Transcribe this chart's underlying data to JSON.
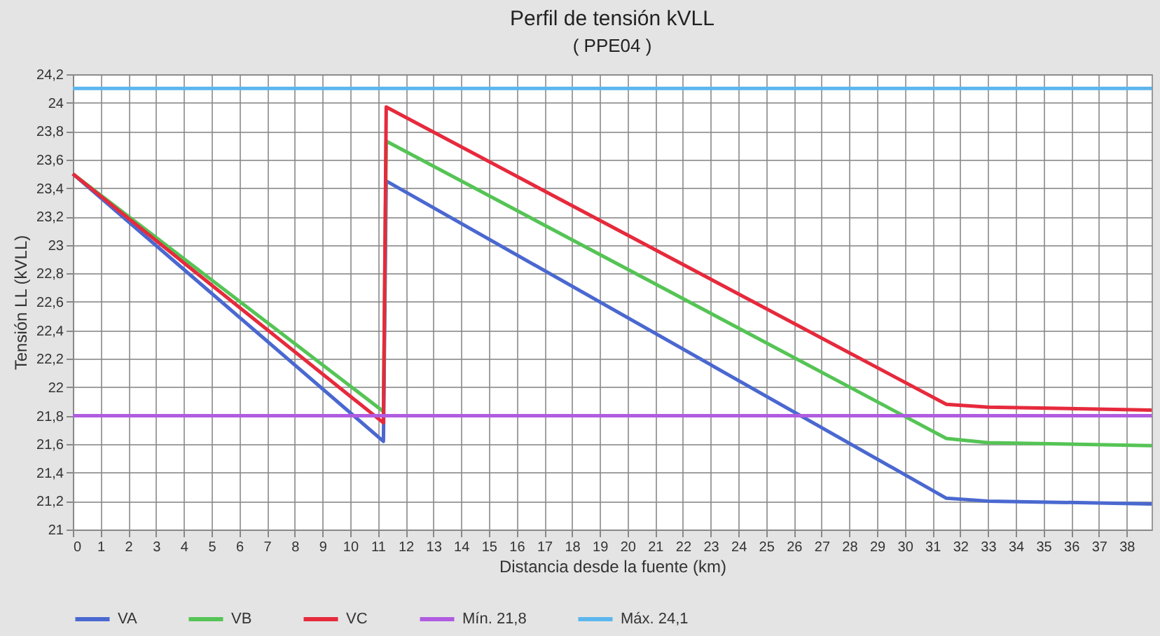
{
  "chart_data": {
    "type": "line",
    "title": "Perfil de tensión kVLL",
    "subtitle": "( PPE04 )",
    "xlabel": "Distancia desde la fuente (km)",
    "ylabel": "Tensión LL (kVLL)",
    "xlim": [
      0,
      38.9
    ],
    "xticks": [
      0,
      1,
      2,
      3,
      4,
      5,
      6,
      7,
      8,
      9,
      10,
      11,
      12,
      13,
      14,
      15,
      16,
      17,
      18,
      19,
      20,
      21,
      22,
      23,
      24,
      25,
      26,
      27,
      28,
      29,
      30,
      31,
      32,
      33,
      34,
      35,
      36,
      37,
      38
    ],
    "ylim": [
      21,
      24.2
    ],
    "yticks": [
      21,
      {
        "value": 21.2,
        "label": "21,2"
      },
      {
        "value": 21.4,
        "label": "21,4"
      },
      {
        "value": 21.6,
        "label": "21,6"
      },
      {
        "value": 21.8,
        "label": "21,8"
      },
      22,
      {
        "value": 22.2,
        "label": "22,2"
      },
      {
        "value": 22.4,
        "label": "22,4"
      },
      {
        "value": 22.6,
        "label": "22,6"
      },
      {
        "value": 22.8,
        "label": "22,8"
      },
      23,
      {
        "value": 23.2,
        "label": "23,2"
      },
      {
        "value": 23.4,
        "label": "23,4"
      },
      {
        "value": 23.6,
        "label": "23,6"
      },
      {
        "value": 23.8,
        "label": "23,8"
      },
      24,
      {
        "value": 24.2,
        "label": "24,2"
      }
    ],
    "grid": true,
    "legend": "bottom",
    "line_style": "solid",
    "marker": "none",
    "series": [
      {
        "name": "VA",
        "color": "#4a68d0",
        "x": [
          0,
          11.2,
          11.3,
          31.5,
          33,
          38.9
        ],
        "values": [
          23.5,
          21.62,
          23.45,
          21.22,
          21.2,
          21.18
        ]
      },
      {
        "name": "VB",
        "color": "#55c455",
        "x": [
          0,
          11.2,
          11.3,
          31.5,
          33,
          38.9
        ],
        "values": [
          23.5,
          21.83,
          23.73,
          21.64,
          21.61,
          21.59
        ]
      },
      {
        "name": "VC",
        "color": "#e62a3c",
        "x": [
          0,
          11.2,
          11.3,
          31.5,
          33,
          38.9
        ],
        "values": [
          23.5,
          21.75,
          23.97,
          21.88,
          21.86,
          21.84
        ]
      },
      {
        "name": "Mín. 21,8",
        "color": "#b05ce0",
        "x": [
          0,
          38.9
        ],
        "values": [
          21.8,
          21.8
        ]
      },
      {
        "name": "Máx. 24,1",
        "color": "#5cb6ee",
        "x": [
          0,
          38.9
        ],
        "values": [
          24.1,
          24.1
        ]
      }
    ]
  }
}
